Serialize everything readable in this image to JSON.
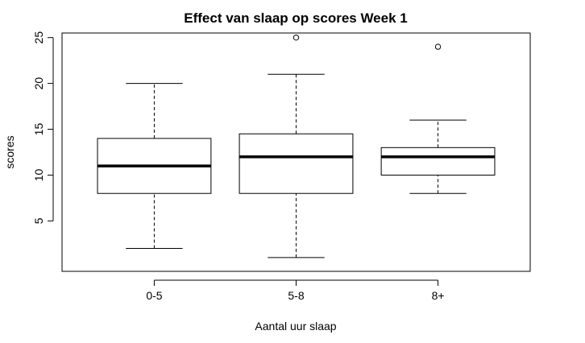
{
  "chart_data": {
    "type": "boxplot",
    "title": "Effect van slaap op scores Week 1",
    "xlabel": "Aantal uur slaap",
    "ylabel": "scores",
    "categories": [
      "0-5",
      "5-8",
      "8+"
    ],
    "yticks": [
      5,
      10,
      15,
      20,
      25
    ],
    "ylim": [
      -0.5,
      25.5
    ],
    "grid": false,
    "boxes": [
      {
        "category": "0-5",
        "whisker_low": 2,
        "q1": 8,
        "median": 11,
        "q3": 14,
        "whisker_high": 20,
        "outliers": []
      },
      {
        "category": "5-8",
        "whisker_low": 1,
        "q1": 8,
        "median": 12,
        "q3": 14.5,
        "whisker_high": 21,
        "outliers": [
          25
        ]
      },
      {
        "category": "8+",
        "whisker_low": 8,
        "q1": 10,
        "median": 12,
        "q3": 13,
        "whisker_high": 16,
        "outliers": [
          24
        ]
      }
    ]
  }
}
